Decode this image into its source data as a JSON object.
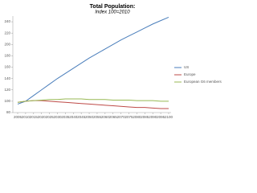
{
  "chart_data": {
    "type": "line",
    "title": "Total Population:",
    "subtitle": "Index 100=2010",
    "x": [
      2005,
      2010,
      2015,
      2020,
      2025,
      2030,
      2035,
      2040,
      2045,
      2050,
      2055,
      2060,
      2065,
      2070,
      2075,
      2080,
      2085,
      2090,
      2095,
      2100
    ],
    "xlim": [
      2005,
      2100
    ],
    "xticks": [
      2005,
      2010,
      2015,
      2020,
      2025,
      2030,
      2035,
      2040,
      2045,
      2050,
      2055,
      2060,
      2065,
      2070,
      2075,
      2080,
      2085,
      2090,
      2095,
      2100
    ],
    "ylim": [
      80,
      250
    ],
    "yticks": [
      80,
      100,
      120,
      140,
      160,
      180,
      200,
      220,
      240
    ],
    "series": [
      {
        "name": "US",
        "color": "#4a7ebb",
        "values": [
          95,
          100,
          110,
          120,
          130,
          140,
          149,
          158,
          167,
          176,
          184,
          192,
          200,
          208,
          215,
          222,
          229,
          236,
          242,
          248
        ]
      },
      {
        "name": "Europe",
        "color": "#be4b48",
        "values": [
          98,
          100,
          101,
          101,
          100,
          99,
          98,
          97,
          96,
          95,
          94,
          93,
          92,
          91,
          90,
          89,
          89,
          88,
          87,
          87
        ]
      },
      {
        "name": "European G6 members",
        "color": "#98b954",
        "values": [
          98,
          100,
          101,
          102,
          103,
          103,
          104,
          104,
          104,
          103,
          103,
          103,
          102,
          102,
          102,
          101,
          101,
          101,
          100,
          100
        ]
      }
    ],
    "grid": false,
    "legend": "right"
  }
}
